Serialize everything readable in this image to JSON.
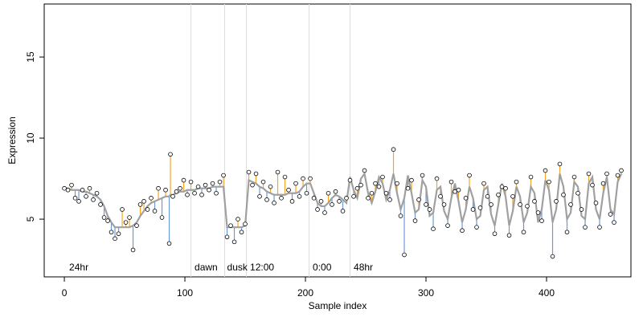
{
  "chart_data": {
    "type": "scatter",
    "xlabel": "Sample index",
    "ylabel": "Expression",
    "xlim": [
      -16.7,
      470
    ],
    "ylim": [
      1.44,
      18.27
    ],
    "xticks": [
      0,
      100,
      200,
      300,
      400
    ],
    "yticks": [
      5,
      10,
      15
    ],
    "fit_color": "#a0a0a0",
    "above_color": "#f5a623",
    "below_color": "#6a9bd8",
    "point_color": "#ffffff",
    "vlines": [
      105,
      133,
      151,
      203,
      237
    ],
    "vline_color": "#dddddd",
    "annotations": [
      {
        "x": 2,
        "text": "24hr"
      },
      {
        "x": 106,
        "text": "dawn"
      },
      {
        "x": 133,
        "text": "dusk"
      },
      {
        "x": 152,
        "text": "12:00"
      },
      {
        "x": 204,
        "text": "0:00"
      },
      {
        "x": 238,
        "text": "48hr"
      }
    ],
    "x": [
      0,
      3,
      6,
      9,
      12,
      15,
      18,
      21,
      24,
      27,
      30,
      33,
      36,
      39,
      42,
      45,
      48,
      51,
      54,
      57,
      60,
      63,
      66,
      69,
      72,
      75,
      78,
      81,
      84,
      87,
      88,
      90,
      93,
      96,
      99,
      102,
      105,
      108,
      111,
      114,
      117,
      120,
      123,
      126,
      129,
      132,
      135,
      138,
      141,
      144,
      147,
      150,
      153,
      156,
      159,
      162,
      165,
      168,
      171,
      174,
      177,
      180,
      183,
      186,
      189,
      192,
      195,
      198,
      201,
      204,
      207,
      210,
      213,
      216,
      219,
      222,
      225,
      228,
      231,
      234,
      237,
      240,
      243,
      246,
      249,
      252,
      255,
      258,
      261,
      264,
      267,
      270,
      273,
      276,
      279,
      282,
      285,
      288,
      291,
      294,
      297,
      300,
      303,
      306,
      309,
      312,
      315,
      318,
      321,
      324,
      327,
      330,
      333,
      336,
      339,
      342,
      345,
      348,
      351,
      354,
      357,
      360,
      363,
      366,
      369,
      372,
      375,
      378,
      381,
      384,
      387,
      390,
      393,
      396,
      399,
      402,
      405,
      408,
      411,
      414,
      417,
      420,
      423,
      426,
      429,
      432,
      435,
      438,
      441,
      444,
      447,
      450,
      453,
      456,
      459,
      462
    ],
    "fitted": [
      6.9,
      6.9,
      6.8,
      6.8,
      6.8,
      6.7,
      6.7,
      6.6,
      6.5,
      6.4,
      6.2,
      5.8,
      5.2,
      4.8,
      4.5,
      4.5,
      4.5,
      4.5,
      4.5,
      4.6,
      4.8,
      5.2,
      5.5,
      5.8,
      6.0,
      6.1,
      6.2,
      6.3,
      6.4,
      6.4,
      6.5,
      6.5,
      6.6,
      6.7,
      6.7,
      6.8,
      6.8,
      6.8,
      6.9,
      6.9,
      6.9,
      6.9,
      7.0,
      7.0,
      7.0,
      7.0,
      4.5,
      4.5,
      4.5,
      4.5,
      4.5,
      4.6,
      7.4,
      7.3,
      7.2,
      7.0,
      6.9,
      6.7,
      6.6,
      6.5,
      6.5,
      6.5,
      6.5,
      6.6,
      6.6,
      6.6,
      6.7,
      7.0,
      7.2,
      7.2,
      6.6,
      6.0,
      5.8,
      5.8,
      6.0,
      6.3,
      6.5,
      6.4,
      6.2,
      6.0,
      7.6,
      6.8,
      6.3,
      7.5,
      7.8,
      6.6,
      6.0,
      6.7,
      7.6,
      7.2,
      6.2,
      6.8,
      7.8,
      6.6,
      5.6,
      6.3,
      7.7,
      6.6,
      5.4,
      5.6,
      7.4,
      7.0,
      5.2,
      5.4,
      6.8,
      7.0,
      5.5,
      5.0,
      6.3,
      7.2,
      6.1,
      4.8,
      5.6,
      7.0,
      6.3,
      5.0,
      5.2,
      6.8,
      7.0,
      5.3,
      4.6,
      5.9,
      7.2,
      6.4,
      4.6,
      5.5,
      7.0,
      6.4,
      4.8,
      5.4,
      7.0,
      6.6,
      4.8,
      5.6,
      7.4,
      6.8,
      4.8,
      5.6,
      7.8,
      7.0,
      5.0,
      5.4,
      7.3,
      7.0,
      5.2,
      5.0,
      7.2,
      7.6,
      5.6,
      5.0,
      6.6,
      7.6,
      5.6,
      5.3,
      7.3,
      7.8
    ],
    "values": [
      6.9,
      6.8,
      7.1,
      6.3,
      6.1,
      6.8,
      6.4,
      6.9,
      6.2,
      6.6,
      5.9,
      5.1,
      4.9,
      4.2,
      3.8,
      4.1,
      5.6,
      4.8,
      5.1,
      3.1,
      4.6,
      5.9,
      6.1,
      5.6,
      6.3,
      5.5,
      6.9,
      5.1,
      6.8,
      3.5,
      9.0,
      6.4,
      6.7,
      6.9,
      7.4,
      6.5,
      7.3,
      6.6,
      7.0,
      6.5,
      7.1,
      6.8,
      7.2,
      6.6,
      7.3,
      7.7,
      3.9,
      4.6,
      3.6,
      5.0,
      4.2,
      4.7,
      7.9,
      7.1,
      7.8,
      6.4,
      7.3,
      6.2,
      7.0,
      6.0,
      7.9,
      6.3,
      7.6,
      6.8,
      6.1,
      7.2,
      6.4,
      7.5,
      6.6,
      7.5,
      6.3,
      5.6,
      6.1,
      5.4,
      6.6,
      5.9,
      6.7,
      6.1,
      5.5,
      6.3,
      7.4,
      6.4,
      6.9,
      7.1,
      8.0,
      6.3,
      6.6,
      7.2,
      7.0,
      7.6,
      6.6,
      6.2,
      9.3,
      7.2,
      5.2,
      2.8,
      6.9,
      7.4,
      4.9,
      6.2,
      7.7,
      5.9,
      5.6,
      4.4,
      7.5,
      6.4,
      5.9,
      4.6,
      7.3,
      6.7,
      6.8,
      4.3,
      6.3,
      7.7,
      5.6,
      4.5,
      5.7,
      7.2,
      6.4,
      5.9,
      4.1,
      6.5,
      7.0,
      6.9,
      4.0,
      6.4,
      7.3,
      5.9,
      4.2,
      5.8,
      7.6,
      6.1,
      5.4,
      4.9,
      8.0,
      7.3,
      2.7,
      6.1,
      8.4,
      6.5,
      4.2,
      5.9,
      7.6,
      6.6,
      5.6,
      4.5,
      7.8,
      7.1,
      6.0,
      4.5,
      7.2,
      7.8,
      5.3,
      4.8,
      7.7,
      8.0
    ]
  }
}
